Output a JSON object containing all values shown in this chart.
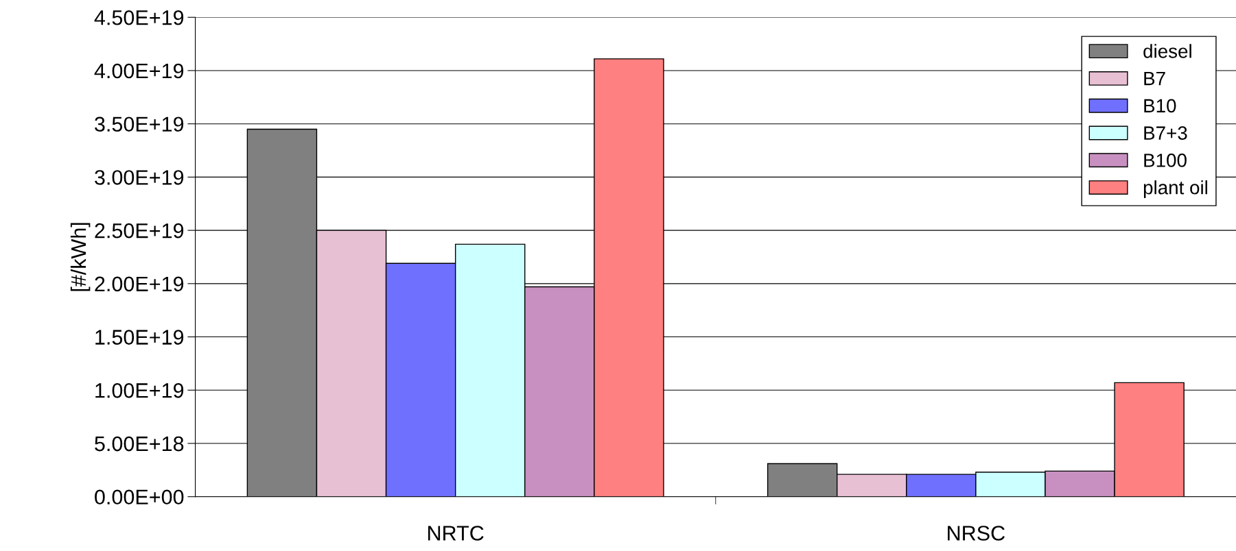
{
  "chart_data": {
    "type": "bar",
    "ylabel": "[#/kWh]",
    "categories": [
      "NRTC",
      "NRSC"
    ],
    "series": [
      {
        "name": "diesel",
        "color": "#808080",
        "values": [
          3.45e+19,
          3.1e+18
        ]
      },
      {
        "name": "B7",
        "color": "#e8c0d4",
        "values": [
          2.5e+19,
          2.1e+18
        ]
      },
      {
        "name": "B10",
        "color": "#7070ff",
        "values": [
          2.19e+19,
          2.1e+18
        ]
      },
      {
        "name": "B7+3",
        "color": "#ccffff",
        "values": [
          2.37e+19,
          2.3e+18
        ]
      },
      {
        "name": "B100",
        "color": "#c890c0",
        "values": [
          1.97e+19,
          2.4e+18
        ]
      },
      {
        "name": "plant oil",
        "color": "#ff8080",
        "values": [
          4.11e+19,
          1.07e+19
        ]
      }
    ],
    "ylim": [
      0,
      4.5e+19
    ],
    "yticks": [
      {
        "value": 0,
        "label": "0.00E+00"
      },
      {
        "value": 5e+18,
        "label": "5.00E+18"
      },
      {
        "value": 1e+19,
        "label": "1.00E+19"
      },
      {
        "value": 1.5e+19,
        "label": "1.50E+19"
      },
      {
        "value": 2e+19,
        "label": "2.00E+19"
      },
      {
        "value": 2.5e+19,
        "label": "2.50E+19"
      },
      {
        "value": 3e+19,
        "label": "3.00E+19"
      },
      {
        "value": 3.5e+19,
        "label": "3.50E+19"
      },
      {
        "value": 4e+19,
        "label": "4.00E+19"
      },
      {
        "value": 4.5e+19,
        "label": "4.50E+19"
      }
    ],
    "grid": "y",
    "legend": "top right"
  }
}
